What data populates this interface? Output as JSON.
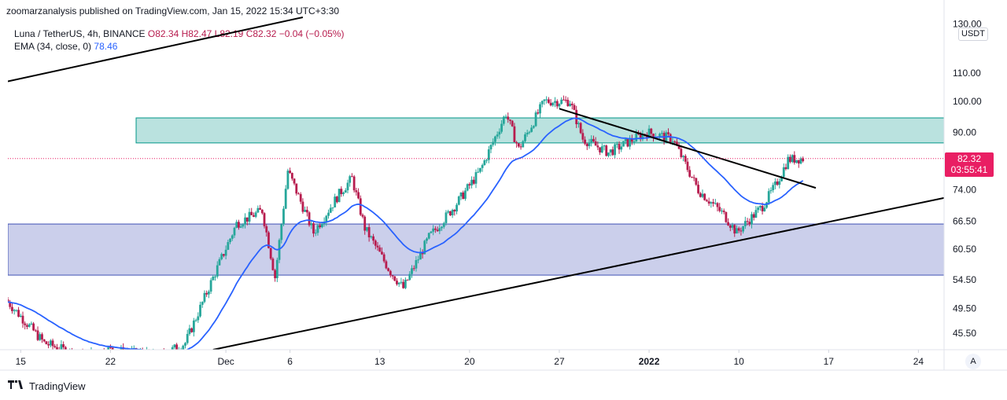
{
  "header": {
    "publisher_line": "zoomarzanalysis published on TradingView.com, Jan 15, 2022 15:34 UTC+3:30"
  },
  "legend": {
    "symbol": "Luna / TetherUS, 4h, BINANCE",
    "open": "O82.34",
    "high": "H82.47",
    "low": "L82.19",
    "close": "C82.32",
    "change": "−0.04 (−0.05%)",
    "ema_label": "EMA (34, close, 0)",
    "ema_value": "78.46"
  },
  "price_axis": {
    "currency": "USDT",
    "ticks": [
      "130.00",
      "110.00",
      "100.00",
      "90.00",
      "74.00",
      "66.50",
      "60.50",
      "54.50",
      "49.50",
      "45.50"
    ],
    "last_price": "82.32",
    "countdown": "03:55:41"
  },
  "time_axis": {
    "ticks": [
      "15",
      "22",
      "Dec",
      "6",
      "13",
      "20",
      "27",
      "2022",
      "10",
      "17",
      "24"
    ]
  },
  "auto_button": "A",
  "footer": {
    "brand": "TradingView",
    "logo": "tv-logo-icon"
  },
  "colors": {
    "up": "#26a69a",
    "down": "#b71c4e",
    "ema": "#2962ff",
    "resistance_zone": "#b2dfdb",
    "support_zone": "#c5cae9",
    "last_price": "#e91e63"
  },
  "chart_data": {
    "type": "candlestick",
    "symbol": "LUNA/USDT",
    "interval": "4h",
    "y_scale": "log",
    "ylim": [
      43,
      133
    ],
    "x_range": [
      "2021-11-14",
      "2022-01-26"
    ],
    "last_close": 82.32,
    "ema": {
      "period": 34,
      "last": 78.46
    },
    "price_path": [
      [
        "2021-11-14",
        51
      ],
      [
        "2021-11-17",
        44
      ],
      [
        "2021-11-20",
        42
      ],
      [
        "2021-11-22",
        43
      ],
      [
        "2021-11-26",
        42
      ],
      [
        "2021-11-28",
        44
      ],
      [
        "2021-11-30",
        54
      ],
      [
        "2021-12-02",
        66
      ],
      [
        "2021-12-04",
        69
      ],
      [
        "2021-12-05",
        55
      ],
      [
        "2021-12-06",
        79
      ],
      [
        "2021-12-08",
        64
      ],
      [
        "2021-12-10",
        73
      ],
      [
        "2021-12-11",
        77
      ],
      [
        "2021-12-12",
        65
      ],
      [
        "2021-12-14",
        56
      ],
      [
        "2021-12-15",
        53
      ],
      [
        "2021-12-17",
        63
      ],
      [
        "2021-12-19",
        70
      ],
      [
        "2021-12-21",
        79
      ],
      [
        "2021-12-23",
        96
      ],
      [
        "2021-12-24",
        85
      ],
      [
        "2021-12-26",
        100
      ],
      [
        "2021-12-28",
        100
      ],
      [
        "2021-12-29",
        88
      ],
      [
        "2021-12-31",
        84
      ],
      [
        "2022-01-03",
        90
      ],
      [
        "2022-01-05",
        88
      ],
      [
        "2022-01-07",
        74
      ],
      [
        "2022-01-09",
        68
      ],
      [
        "2022-01-10",
        64
      ],
      [
        "2022-01-12",
        70
      ],
      [
        "2022-01-13",
        75
      ],
      [
        "2022-01-14",
        82
      ],
      [
        "2022-01-15",
        82.32
      ]
    ],
    "zones": [
      {
        "name": "resistance",
        "from": "2021-11-24",
        "to": "2022-01-26",
        "low": 86.8,
        "high": 94.5
      },
      {
        "name": "support",
        "from": "2021-11-14",
        "to": "2022-01-26",
        "low": 55.4,
        "high": 65.9
      }
    ],
    "trendlines": [
      {
        "name": "upper-left-line",
        "points": [
          [
            "2021-11-14",
            107
          ],
          [
            "2021-12-07",
            133
          ]
        ]
      },
      {
        "name": "rising-support-line",
        "points": [
          [
            "2021-11-30",
            43
          ],
          [
            "2022-01-26",
            72
          ]
        ]
      },
      {
        "name": "descending-resistance-line",
        "points": [
          [
            "2021-12-27",
            97.5
          ],
          [
            "2022-01-16",
            74.5
          ]
        ]
      }
    ]
  }
}
